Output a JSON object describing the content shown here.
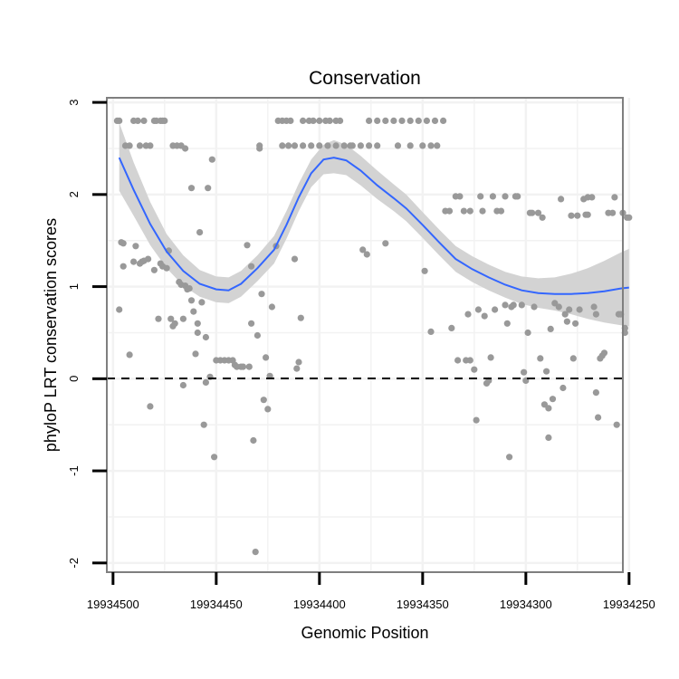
{
  "chart_data": {
    "type": "scatter",
    "title": "Conservation",
    "xlabel": "Genomic Position",
    "ylabel": "phyloP LRT conservation scores",
    "x_reversed": true,
    "xlim": [
      19934503,
      19934253
    ],
    "ylim": [
      -2.1,
      3.05
    ],
    "x_ticks": [
      19934500,
      19934450,
      19934400,
      19934350,
      19934300,
      19934250
    ],
    "x_tick_labels": [
      "19934500",
      "19934450",
      "19934400",
      "19934350",
      "19934300",
      "19934250"
    ],
    "y_ticks": [
      -2,
      -1,
      0,
      1,
      2,
      3
    ],
    "y_tick_labels": [
      "-2",
      "-1",
      "0",
      "1",
      "2",
      "3"
    ],
    "reference_line": {
      "y": 0,
      "style": "dashed"
    },
    "grid": true,
    "point_color": "#999999",
    "smooth_color": "#3366ff",
    "band_color": "#d3d3d3",
    "points": [
      [
        19934498,
        2.8
      ],
      [
        19934497,
        2.8
      ],
      [
        19934494,
        2.53
      ],
      [
        19934492,
        2.53
      ],
      [
        19934490,
        2.8
      ],
      [
        19934488,
        2.8
      ],
      [
        19934487,
        2.53
      ],
      [
        19934485,
        2.8
      ],
      [
        19934484,
        2.53
      ],
      [
        19934482,
        2.53
      ],
      [
        19934480,
        2.8
      ],
      [
        19934479,
        2.8
      ],
      [
        19934477,
        2.8
      ],
      [
        19934476,
        2.8
      ],
      [
        19934475,
        2.8
      ],
      [
        19934471,
        2.53
      ],
      [
        19934469,
        2.53
      ],
      [
        19934467,
        2.53
      ],
      [
        19934465,
        2.5
      ],
      [
        19934497,
        0.75
      ],
      [
        19934496,
        1.48
      ],
      [
        19934495,
        1.47
      ],
      [
        19934495,
        1.22
      ],
      [
        19934492,
        0.26
      ],
      [
        19934490,
        1.27
      ],
      [
        19934489,
        1.44
      ],
      [
        19934487,
        1.25
      ],
      [
        19934486,
        1.27
      ],
      [
        19934485,
        1.28
      ],
      [
        19934483,
        1.3
      ],
      [
        19934482,
        -0.3
      ],
      [
        19934480,
        1.18
      ],
      [
        19934478,
        0.65
      ],
      [
        19934477,
        1.25
      ],
      [
        19934476,
        1.22
      ],
      [
        19934474,
        1.2
      ],
      [
        19934473,
        1.39
      ],
      [
        19934472,
        0.65
      ],
      [
        19934471,
        0.57
      ],
      [
        19934470,
        0.6
      ],
      [
        19934468,
        1.05
      ],
      [
        19934467,
        1.02
      ],
      [
        19934466,
        0.65
      ],
      [
        19934466,
        -0.07
      ],
      [
        19934465,
        1.01
      ],
      [
        19934464,
        0.97
      ],
      [
        19934463,
        0.98
      ],
      [
        19934462,
        0.85
      ],
      [
        19934462,
        2.07
      ],
      [
        19934461,
        0.73
      ],
      [
        19934460,
        0.27
      ],
      [
        19934459,
        0.6
      ],
      [
        19934459,
        0.5
      ],
      [
        19934458,
        1.59
      ],
      [
        19934457,
        0.83
      ],
      [
        19934456,
        -0.5
      ],
      [
        19934455,
        -0.04
      ],
      [
        19934455,
        0.45
      ],
      [
        19934454,
        2.07
      ],
      [
        19934453,
        0.02
      ],
      [
        19934452,
        2.38
      ],
      [
        19934451,
        -0.85
      ],
      [
        19934450,
        0.2
      ],
      [
        19934448,
        0.2
      ],
      [
        19934446,
        0.2
      ],
      [
        19934444,
        0.2
      ],
      [
        19934442,
        0.2
      ],
      [
        19934441,
        0.15
      ],
      [
        19934440,
        0.13
      ],
      [
        19934438,
        0.13
      ],
      [
        19934437,
        0.13
      ],
      [
        19934435,
        1.45
      ],
      [
        19934434,
        0.13
      ],
      [
        19934433,
        1.22
      ],
      [
        19934433,
        0.6
      ],
      [
        19934432,
        -0.67
      ],
      [
        19934431,
        -1.88
      ],
      [
        19934430,
        0.47
      ],
      [
        19934429,
        2.5
      ],
      [
        19934429,
        2.53
      ],
      [
        19934428,
        0.92
      ],
      [
        19934427,
        -0.23
      ],
      [
        19934426,
        0.23
      ],
      [
        19934425,
        -0.33
      ],
      [
        19934424,
        0.03
      ],
      [
        19934423,
        0.78
      ],
      [
        19934421,
        1.44
      ],
      [
        19934420,
        2.8
      ],
      [
        19934418,
        2.8
      ],
      [
        19934416,
        2.8
      ],
      [
        19934414,
        2.8
      ],
      [
        19934412,
        1.3
      ],
      [
        19934411,
        0.11
      ],
      [
        19934410,
        0.18
      ],
      [
        19934409,
        0.66
      ],
      [
        19934408,
        2.8
      ],
      [
        19934405,
        2.8
      ],
      [
        19934403,
        2.8
      ],
      [
        19934400,
        2.8
      ],
      [
        19934397,
        2.8
      ],
      [
        19934395,
        2.8
      ],
      [
        19934392,
        2.8
      ],
      [
        19934390,
        2.8
      ],
      [
        19934418,
        2.53
      ],
      [
        19934415,
        2.53
      ],
      [
        19934412,
        2.53
      ],
      [
        19934408,
        2.53
      ],
      [
        19934404,
        2.53
      ],
      [
        19934400,
        2.53
      ],
      [
        19934396,
        2.53
      ],
      [
        19934392,
        2.53
      ],
      [
        19934388,
        2.53
      ],
      [
        19934384,
        2.53
      ],
      [
        19934379,
        1.4
      ],
      [
        19934377,
        1.35
      ],
      [
        19934385,
        2.53
      ],
      [
        19934380,
        2.53
      ],
      [
        19934376,
        2.8
      ],
      [
        19934372,
        2.8
      ],
      [
        19934368,
        2.8
      ],
      [
        19934364,
        2.8
      ],
      [
        19934360,
        2.8
      ],
      [
        19934356,
        2.8
      ],
      [
        19934352,
        2.8
      ],
      [
        19934348,
        2.8
      ],
      [
        19934344,
        2.8
      ],
      [
        19934340,
        2.8
      ],
      [
        19934376,
        2.53
      ],
      [
        19934372,
        2.53
      ],
      [
        19934368,
        1.47
      ],
      [
        19934362,
        2.53
      ],
      [
        19934356,
        2.53
      ],
      [
        19934350,
        2.53
      ],
      [
        19934346,
        2.53
      ],
      [
        19934343,
        2.53
      ],
      [
        19934349,
        1.17
      ],
      [
        19934346,
        0.51
      ],
      [
        19934339,
        1.82
      ],
      [
        19934337,
        1.82
      ],
      [
        19934336,
        0.55
      ],
      [
        19934334,
        1.98
      ],
      [
        19934333,
        0.2
      ],
      [
        19934332,
        1.98
      ],
      [
        19934330,
        1.82
      ],
      [
        19934329,
        0.2
      ],
      [
        19934328,
        0.7
      ],
      [
        19934327,
        1.82
      ],
      [
        19934327,
        0.2
      ],
      [
        19934325,
        0.1
      ],
      [
        19934324,
        -0.45
      ],
      [
        19934323,
        0.75
      ],
      [
        19934322,
        1.98
      ],
      [
        19934321,
        1.82
      ],
      [
        19934320,
        0.68
      ],
      [
        19934319,
        -0.05
      ],
      [
        19934318,
        -0.02
      ],
      [
        19934317,
        0.23
      ],
      [
        19934316,
        1.98
      ],
      [
        19934315,
        0.75
      ],
      [
        19934314,
        1.82
      ],
      [
        19934312,
        1.82
      ],
      [
        19934310,
        0.8
      ],
      [
        19934310,
        1.98
      ],
      [
        19934309,
        0.6
      ],
      [
        19934308,
        -0.85
      ],
      [
        19934307,
        0.78
      ],
      [
        19934306,
        0.8
      ],
      [
        19934305,
        1.98
      ],
      [
        19934304,
        1.98
      ],
      [
        19934302,
        0.8
      ],
      [
        19934301,
        0.07
      ],
      [
        19934300,
        -0.02
      ],
      [
        19934299,
        0.5
      ],
      [
        19934298,
        1.8
      ],
      [
        19934297,
        1.8
      ],
      [
        19934296,
        0.78
      ],
      [
        19934294,
        1.8
      ],
      [
        19934293,
        0.22
      ],
      [
        19934292,
        1.75
      ],
      [
        19934291,
        -0.28
      ],
      [
        19934290,
        0.08
      ],
      [
        19934289,
        -0.32
      ],
      [
        19934289,
        -0.64
      ],
      [
        19934288,
        0.54
      ],
      [
        19934287,
        -0.22
      ],
      [
        19934286,
        0.82
      ],
      [
        19934284,
        0.78
      ],
      [
        19934283,
        1.95
      ],
      [
        19934282,
        -0.1
      ],
      [
        19934281,
        0.7
      ],
      [
        19934280,
        0.62
      ],
      [
        19934279,
        0.75
      ],
      [
        19934278,
        1.77
      ],
      [
        19934277,
        0.22
      ],
      [
        19934276,
        0.6
      ],
      [
        19934275,
        1.77
      ],
      [
        19934274,
        0.75
      ],
      [
        19934272,
        1.95
      ],
      [
        19934271,
        1.78
      ],
      [
        19934270,
        1.97
      ],
      [
        19934270,
        1.78
      ],
      [
        19934268,
        1.97
      ],
      [
        19934267,
        0.78
      ],
      [
        19934266,
        -0.15
      ],
      [
        19934266,
        0.7
      ],
      [
        19934265,
        -0.42
      ],
      [
        19934264,
        0.22
      ],
      [
        19934263,
        0.25
      ],
      [
        19934262,
        0.28
      ],
      [
        19934260,
        1.8
      ],
      [
        19934258,
        1.8
      ],
      [
        19934257,
        1.97
      ],
      [
        19934256,
        -0.5
      ],
      [
        19934255,
        0.7
      ],
      [
        19934254,
        0.7
      ],
      [
        19934253,
        1.8
      ],
      [
        19934252,
        0.55
      ],
      [
        19934252,
        0.5
      ],
      [
        19934251,
        1.75
      ],
      [
        19934250,
        1.75
      ]
    ],
    "smooth_line": [
      [
        19934497,
        2.4
      ],
      [
        19934490,
        2.05
      ],
      [
        19934482,
        1.68
      ],
      [
        19934474,
        1.38
      ],
      [
        19934466,
        1.17
      ],
      [
        19934458,
        1.03
      ],
      [
        19934450,
        0.97
      ],
      [
        19934444,
        0.96
      ],
      [
        19934438,
        1.03
      ],
      [
        19934430,
        1.2
      ],
      [
        19934422,
        1.4
      ],
      [
        19934416,
        1.67
      ],
      [
        19934410,
        1.97
      ],
      [
        19934404,
        2.23
      ],
      [
        19934398,
        2.38
      ],
      [
        19934393,
        2.4
      ],
      [
        19934387,
        2.37
      ],
      [
        19934380,
        2.26
      ],
      [
        19934372,
        2.1
      ],
      [
        19934364,
        1.96
      ],
      [
        19934358,
        1.85
      ],
      [
        19934350,
        1.67
      ],
      [
        19934342,
        1.48
      ],
      [
        19934334,
        1.3
      ],
      [
        19934326,
        1.19
      ],
      [
        19934318,
        1.1
      ],
      [
        19934310,
        1.02
      ],
      [
        19934302,
        0.96
      ],
      [
        19934294,
        0.93
      ],
      [
        19934286,
        0.92
      ],
      [
        19934278,
        0.92
      ],
      [
        19934270,
        0.93
      ],
      [
        19934262,
        0.95
      ],
      [
        19934254,
        0.98
      ],
      [
        19934250,
        0.99
      ]
    ],
    "confidence_band": [
      [
        19934497,
        2.78,
        2.04
      ],
      [
        19934490,
        2.35,
        1.77
      ],
      [
        19934482,
        1.92,
        1.45
      ],
      [
        19934474,
        1.57,
        1.2
      ],
      [
        19934466,
        1.34,
        1.01
      ],
      [
        19934458,
        1.18,
        0.89
      ],
      [
        19934450,
        1.11,
        0.83
      ],
      [
        19934444,
        1.1,
        0.82
      ],
      [
        19934438,
        1.17,
        0.89
      ],
      [
        19934430,
        1.34,
        1.06
      ],
      [
        19934422,
        1.55,
        1.25
      ],
      [
        19934416,
        1.82,
        1.52
      ],
      [
        19934410,
        2.12,
        1.82
      ],
      [
        19934404,
        2.38,
        2.08
      ],
      [
        19934398,
        2.54,
        2.22
      ],
      [
        19934393,
        2.59,
        2.23
      ],
      [
        19934387,
        2.54,
        2.21
      ],
      [
        19934380,
        2.42,
        2.1
      ],
      [
        19934372,
        2.26,
        1.95
      ],
      [
        19934364,
        2.11,
        1.82
      ],
      [
        19934358,
        2.0,
        1.71
      ],
      [
        19934350,
        1.81,
        1.53
      ],
      [
        19934342,
        1.62,
        1.34
      ],
      [
        19934334,
        1.44,
        1.16
      ],
      [
        19934326,
        1.33,
        1.05
      ],
      [
        19934318,
        1.24,
        0.96
      ],
      [
        19934310,
        1.16,
        0.88
      ],
      [
        19934302,
        1.11,
        0.81
      ],
      [
        19934294,
        1.09,
        0.77
      ],
      [
        19934286,
        1.1,
        0.74
      ],
      [
        19934278,
        1.14,
        0.7
      ],
      [
        19934270,
        1.2,
        0.65
      ],
      [
        19934262,
        1.28,
        0.61
      ],
      [
        19934254,
        1.37,
        0.58
      ],
      [
        19934250,
        1.41,
        0.57
      ]
    ]
  }
}
